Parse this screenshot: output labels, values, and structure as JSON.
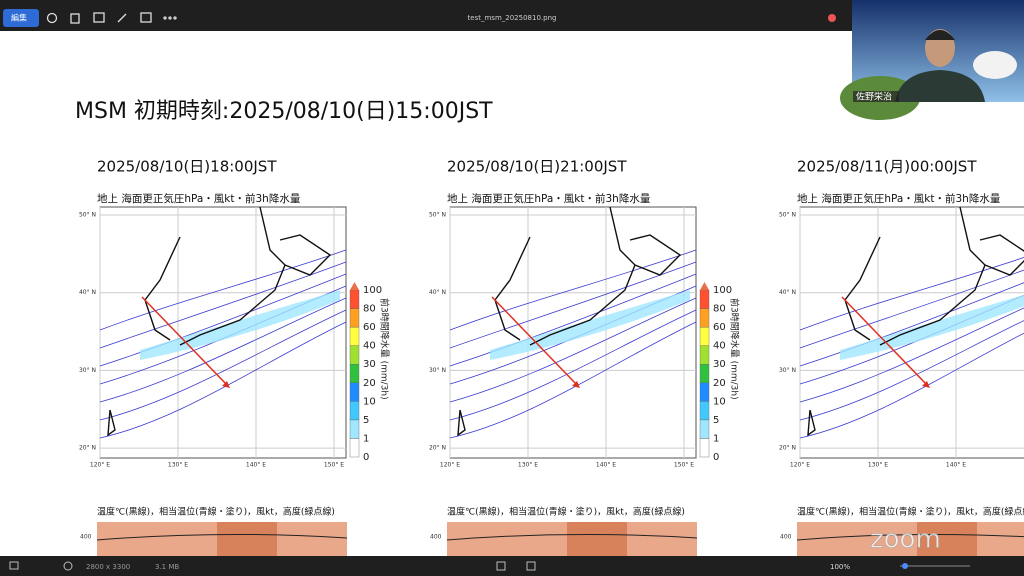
{
  "toolbar": {
    "edit": "編集",
    "file_name": "test_msm_20250810.png"
  },
  "webcam": {
    "name": "佐野栄治"
  },
  "title": "MSM 初期時刻:2025/08/10(日)15:00JST",
  "map_title": "地上 海面更正気圧hPa・風kt・前3h降水量",
  "lat_labels": [
    "50° N",
    "40° N",
    "30° N",
    "20° N"
  ],
  "lon_labels": [
    "120° E",
    "130° E",
    "140° E",
    "150° E"
  ],
  "colorbar": {
    "levels": [
      100,
      80,
      60,
      40,
      30,
      20,
      10,
      5,
      1,
      0
    ],
    "label": "前3時間降水量 (mm/3h)"
  },
  "section_title": "温度℃(黒線)，相当温位(青線・塗り)，風kt，高度(緑点線)",
  "section_axis": 400,
  "panels": [
    {
      "date": "2025/08/10(日)18:00JST"
    },
    {
      "date": "2025/08/10(日)21:00JST"
    },
    {
      "date": "2025/08/11(月)00:00JST"
    }
  ],
  "status": {
    "dimensions": "2800 x 3300",
    "size": "3.1 MB",
    "zoom": "100%"
  },
  "watermark": "zoom"
}
